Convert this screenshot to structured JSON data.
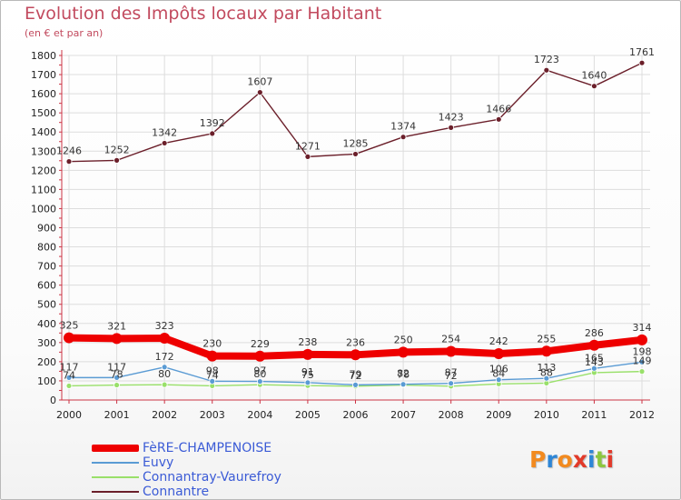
{
  "header": {
    "title": "Evolution des Impôts locaux par Habitant",
    "subtitle": "(en € et par an)"
  },
  "colors": {
    "axis": "#cc3344",
    "grid": "#dddddd"
  },
  "chart_data": {
    "type": "line",
    "title": "Evolution des Impôts locaux par Habitant",
    "subtitle": "(en € et par an)",
    "x": [
      "2000",
      "2001",
      "2002",
      "2003",
      "2004",
      "2005",
      "2006",
      "2007",
      "2008",
      "2009",
      "2010",
      "2011",
      "2012"
    ],
    "ylim": [
      0,
      1800
    ],
    "yticks": [
      0,
      100,
      200,
      300,
      400,
      500,
      600,
      700,
      800,
      900,
      1000,
      1100,
      1200,
      1300,
      1400,
      1500,
      1600,
      1700,
      1800
    ],
    "grid": true,
    "legend_position": "bottom-left",
    "series": [
      {
        "name": "Connantre",
        "color": "#6b1f2a",
        "values": [
          1246,
          1252,
          1342,
          1392,
          1607,
          1271,
          1285,
          1374,
          1423,
          1466,
          1723,
          1640,
          1761
        ]
      },
      {
        "name": "Connantray-Vaurefroy",
        "color": "#99e06a",
        "values": [
          74,
          78,
          80,
          74,
          80,
          75,
          72,
          78,
          72,
          84,
          88,
          143,
          149
        ]
      },
      {
        "name": "Euvy",
        "color": "#5a9bd4",
        "values": [
          117,
          117,
          172,
          98,
          97,
          91,
          79,
          82,
          87,
          106,
          113,
          165,
          198
        ]
      },
      {
        "name": "FèRE-CHAMPENOISE",
        "color": "#ee0000",
        "values": [
          325,
          321,
          323,
          230,
          229,
          238,
          236,
          250,
          254,
          242,
          255,
          286,
          314
        ]
      }
    ]
  },
  "legend": {
    "items": [
      {
        "label": "FèRE-CHAMPENOISE",
        "color": "#ee0000",
        "width": 8
      },
      {
        "label": "Euvy",
        "color": "#5a9bd4",
        "width": 1.5
      },
      {
        "label": "Connantray-Vaurefroy",
        "color": "#99e06a",
        "width": 1.5
      },
      {
        "label": "Connantre",
        "color": "#6b1f2a",
        "width": 1.5
      }
    ]
  },
  "logo": {
    "letters": [
      "P",
      "r",
      "o",
      "x",
      "i",
      "t",
      "i"
    ],
    "colors": [
      "#f28a1f",
      "#2e86d6",
      "#f28a1f",
      "#e23a2a",
      "#2e86d6",
      "#8cc63f",
      "#e23a2a"
    ]
  }
}
